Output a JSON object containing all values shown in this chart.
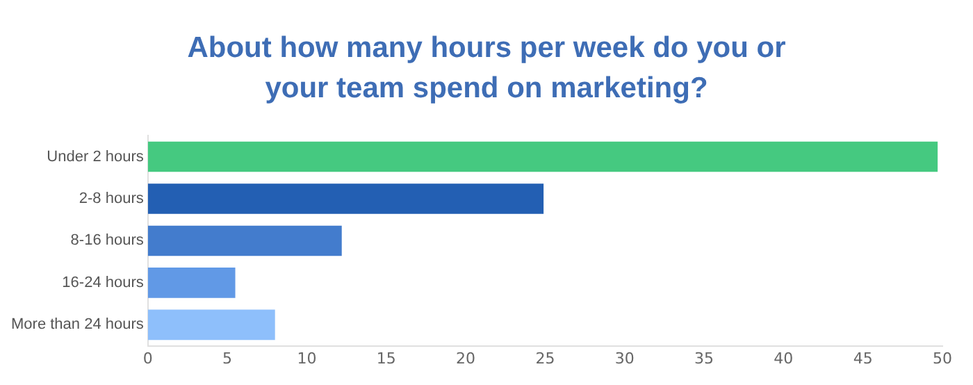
{
  "chart_data": {
    "type": "bar",
    "orientation": "horizontal",
    "title": "About how many hours per week do you or your team spend on marketing?",
    "categories": [
      "Under 2 hours",
      "2-8 hours",
      "8-16 hours",
      "16-24 hours",
      "More than 24 hours"
    ],
    "values": [
      49.7,
      24.9,
      12.2,
      5.5,
      8.0
    ],
    "colors": [
      "#45c980",
      "#235fb3",
      "#437ccd",
      "#6199e6",
      "#8ebffb"
    ],
    "xlim": [
      0,
      50
    ],
    "xticks": [
      0,
      5,
      10,
      15,
      20,
      25,
      30,
      35,
      40,
      45,
      50
    ],
    "grid": false,
    "legend": false
  }
}
